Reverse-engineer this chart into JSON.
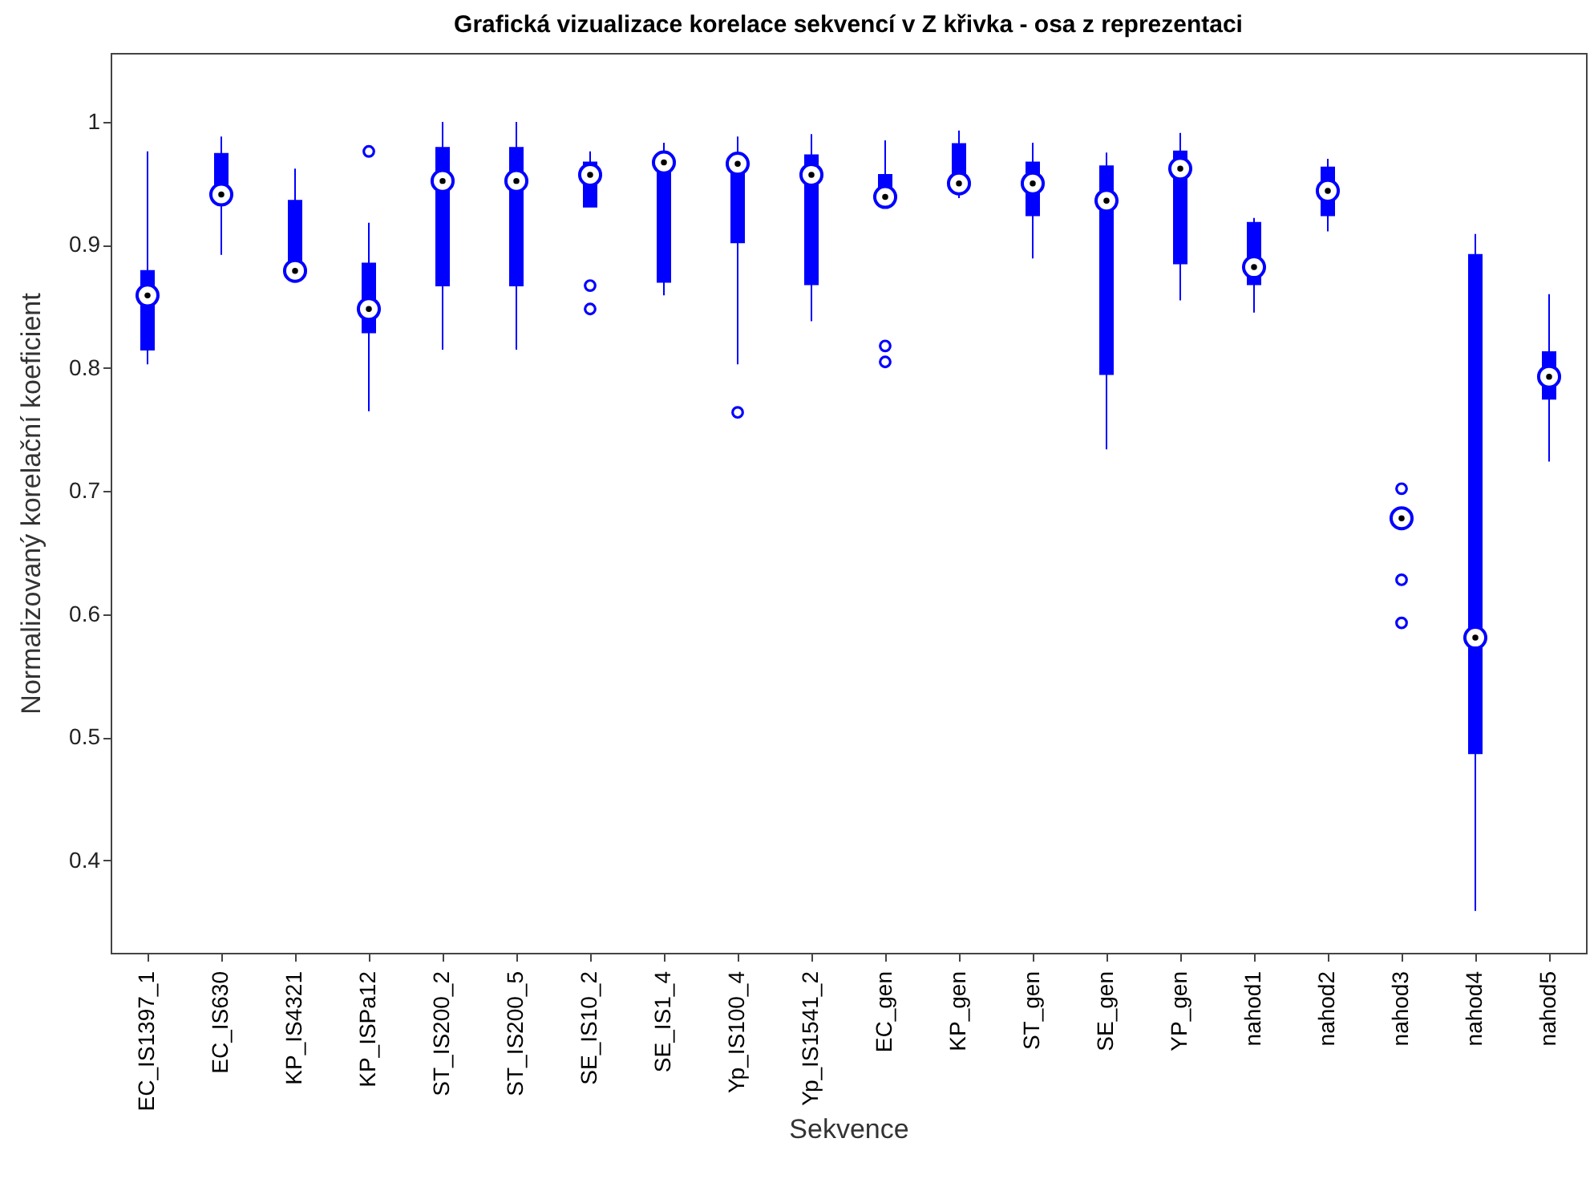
{
  "chart_data": {
    "type": "box",
    "title": "Grafická vizualizace korelace sekvencí v Z křivka - osa z reprezentaci",
    "xlabel": "Sekvence",
    "ylabel": "Normalizovaný korelační koeficient",
    "categories": [
      "EC_IS1397_1",
      "EC_IS630",
      "KP_IS4321",
      "KP_ISPa12",
      "ST_IS200_2",
      "ST_IS200_5",
      "SE_IS10_2",
      "SE_IS1_4",
      "Yp_IS100_4",
      "Yp_IS1541_2",
      "EC_gen",
      "KP_gen",
      "ST_gen",
      "SE_gen",
      "YP_gen",
      "nahod1",
      "nahod2",
      "nahod3",
      "nahod4",
      "nahod5"
    ],
    "ylim": [
      0.325,
      1.056
    ],
    "yticks": [
      0.4,
      0.5,
      0.6,
      0.7,
      0.8,
      0.9,
      1
    ],
    "grid": false,
    "series": [
      {
        "color": "#0000ff",
        "marker": "circle",
        "boxes": [
          {
            "low": 0.803,
            "q1": 0.815,
            "median": 0.859,
            "q3": 0.879,
            "high": 0.976
          },
          {
            "low": 0.892,
            "q1": 0.941,
            "median": 0.941,
            "q3": 0.974,
            "high": 0.988
          },
          {
            "low": 0.879,
            "q1": 0.879,
            "median": 0.879,
            "q3": 0.936,
            "high": 0.962
          },
          {
            "low": 0.765,
            "q1": 0.829,
            "median": 0.848,
            "q3": 0.885,
            "high": 0.918,
            "outliers": [
              0.976
            ]
          },
          {
            "low": 0.815,
            "q1": 0.867,
            "median": 0.952,
            "q3": 0.979,
            "high": 1.0
          },
          {
            "low": 0.815,
            "q1": 0.867,
            "median": 0.952,
            "q3": 0.979,
            "high": 1.0
          },
          {
            "low": 0.931,
            "q1": 0.931,
            "median": 0.957,
            "q3": 0.967,
            "high": 0.976,
            "outliers": [
              0.867,
              0.848
            ]
          },
          {
            "low": 0.859,
            "q1": 0.87,
            "median": 0.967,
            "q3": 0.967,
            "high": 0.983
          },
          {
            "low": 0.803,
            "q1": 0.902,
            "median": 0.966,
            "q3": 0.966,
            "high": 0.988,
            "outliers": [
              0.764
            ]
          },
          {
            "low": 0.838,
            "q1": 0.868,
            "median": 0.957,
            "q3": 0.973,
            "high": 0.99
          },
          {
            "low": 0.939,
            "q1": 0.939,
            "median": 0.939,
            "q3": 0.957,
            "high": 0.985,
            "outliers": [
              0.818,
              0.805
            ]
          },
          {
            "low": 0.938,
            "q1": 0.95,
            "median": 0.95,
            "q3": 0.982,
            "high": 0.993
          },
          {
            "low": 0.889,
            "q1": 0.924,
            "median": 0.95,
            "q3": 0.967,
            "high": 0.983
          },
          {
            "low": 0.734,
            "q1": 0.795,
            "median": 0.936,
            "q3": 0.964,
            "high": 0.975
          },
          {
            "low": 0.855,
            "q1": 0.885,
            "median": 0.962,
            "q3": 0.976,
            "high": 0.991
          },
          {
            "low": 0.845,
            "q1": 0.868,
            "median": 0.882,
            "q3": 0.918,
            "high": 0.922
          },
          {
            "low": 0.911,
            "q1": 0.924,
            "median": 0.944,
            "q3": 0.963,
            "high": 0.97
          },
          {
            "low": 0.678,
            "q1": 0.678,
            "median": 0.678,
            "q3": 0.678,
            "high": 0.678,
            "outliers": [
              0.702,
              0.628,
              0.593
            ]
          },
          {
            "low": 0.359,
            "q1": 0.487,
            "median": 0.581,
            "q3": 0.892,
            "high": 0.909
          },
          {
            "low": 0.724,
            "q1": 0.775,
            "median": 0.793,
            "q3": 0.813,
            "high": 0.86
          }
        ]
      }
    ]
  }
}
